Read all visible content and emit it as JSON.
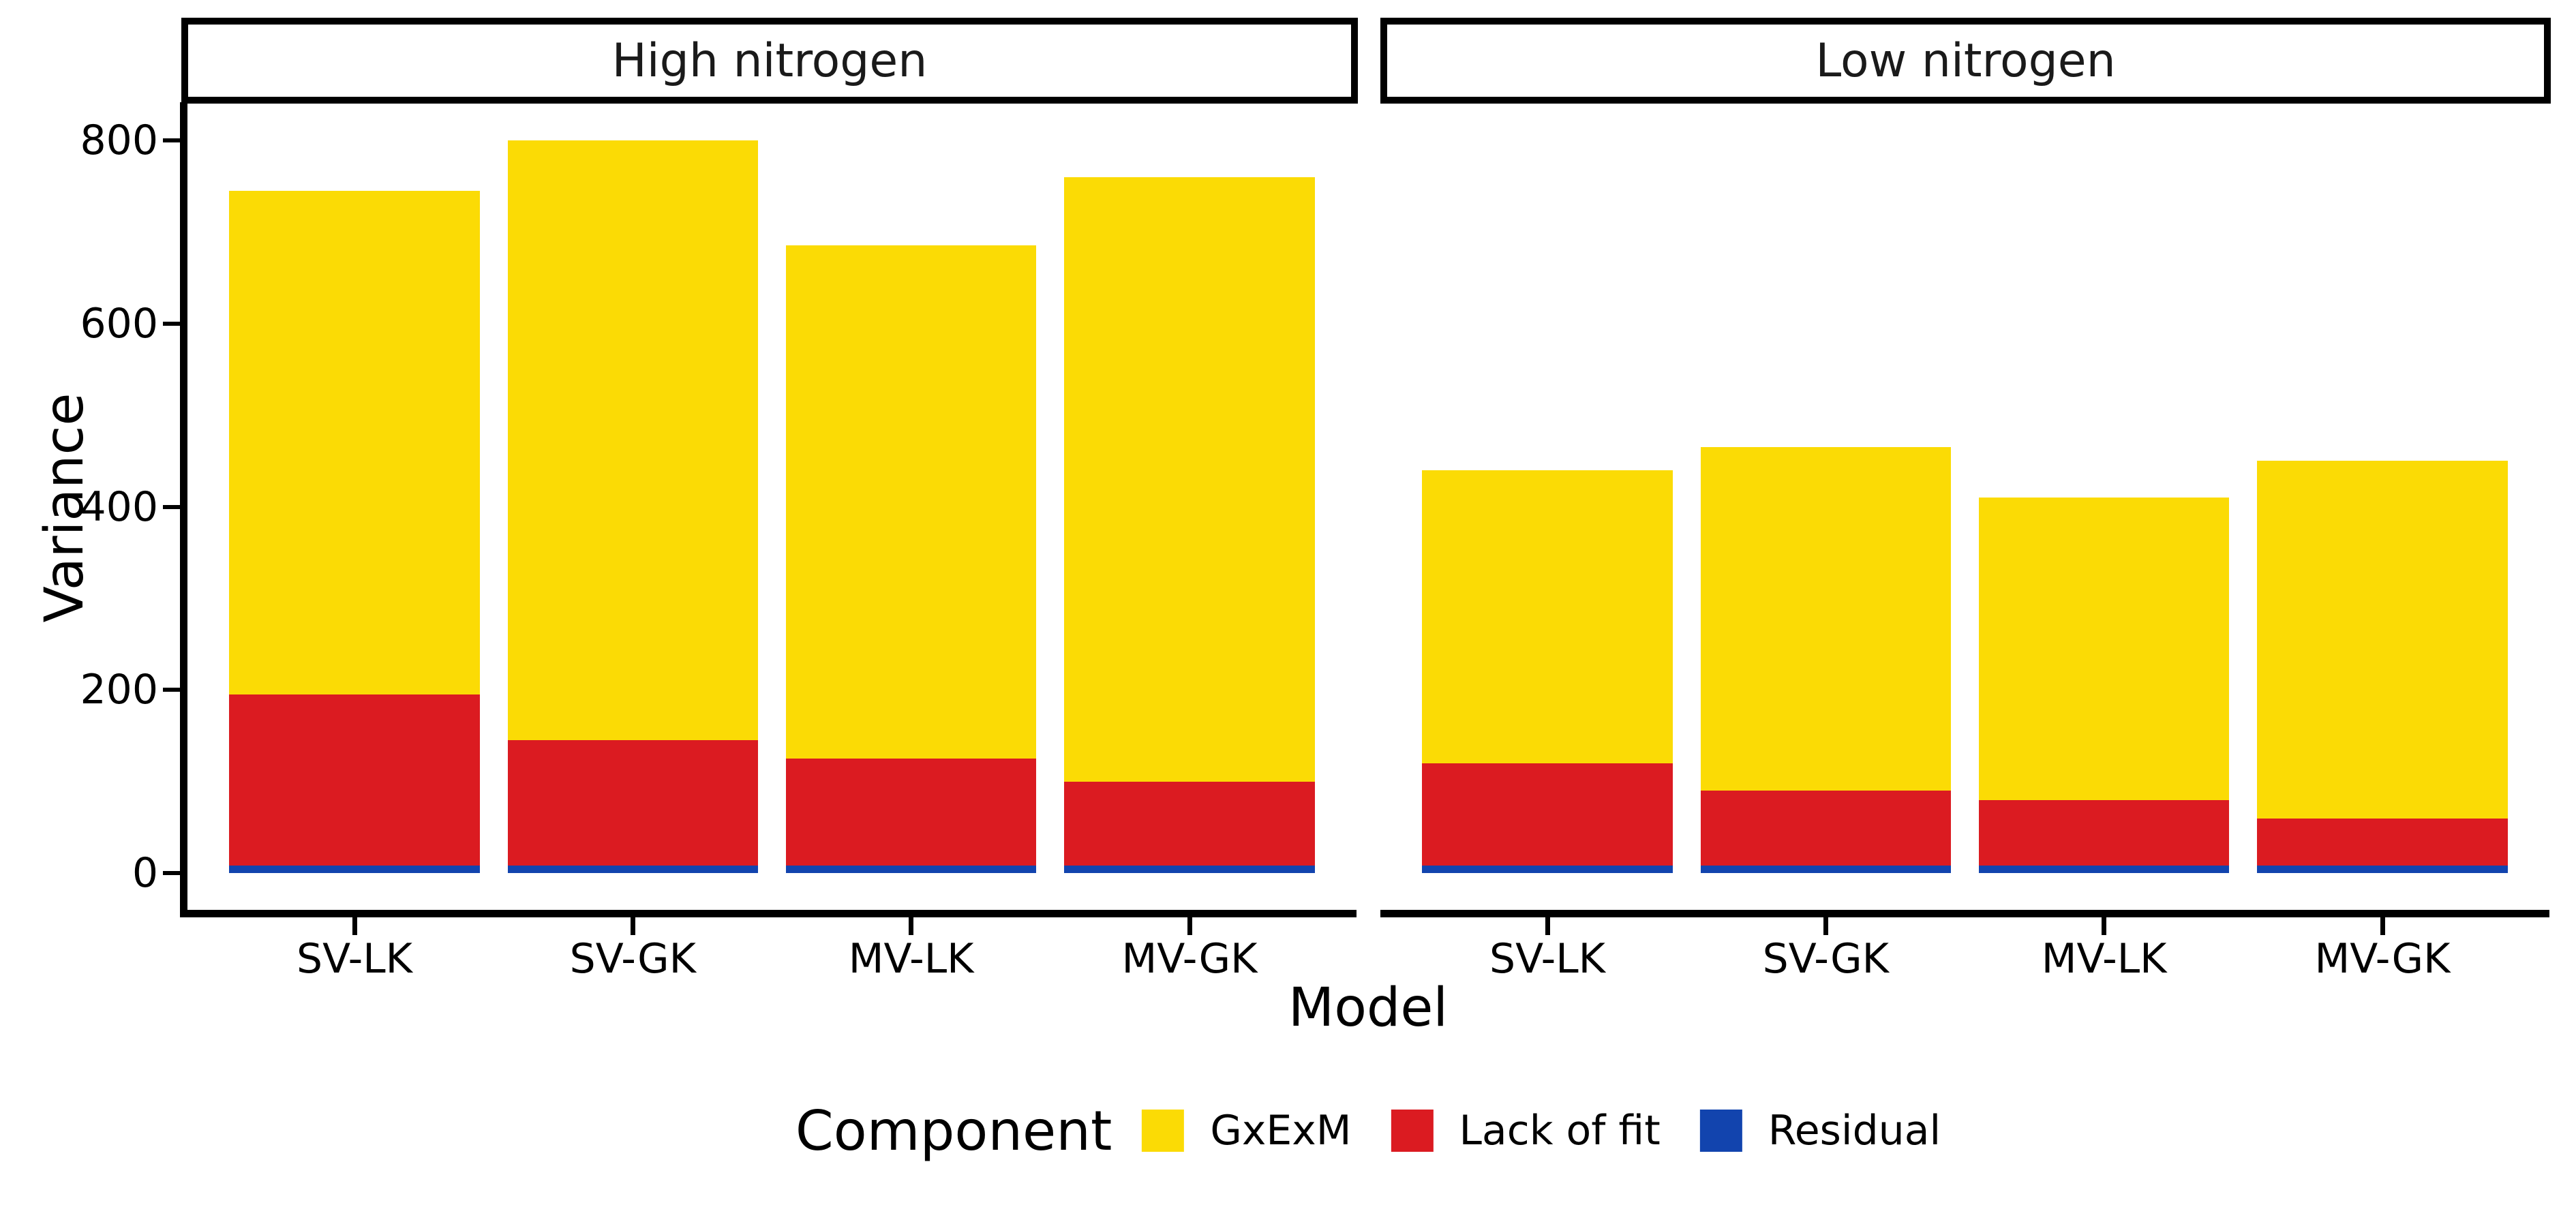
{
  "chart_data": {
    "type": "bar",
    "stacked": true,
    "title": "",
    "xlabel": "Model",
    "ylabel": "Variance",
    "ylim": [
      0,
      800
    ],
    "yticks": [
      0,
      200,
      400,
      600,
      800
    ],
    "grid": false,
    "categories": [
      "SV-LK",
      "SV-GK",
      "MV-LK",
      "MV-GK"
    ],
    "stack_order_bottom_to_top": [
      "Residual",
      "Lack of fit",
      "GxExM"
    ],
    "legend": {
      "title": "Component",
      "position": "bottom",
      "items": [
        {
          "label": "GxExM",
          "color": "#FBDB05"
        },
        {
          "label": "Lack of fit",
          "color": "#DB1B21"
        },
        {
          "label": "Residual",
          "color": "#1244AE"
        }
      ]
    },
    "facets": [
      {
        "label": "High nitrogen",
        "series": [
          {
            "name": "GxExM",
            "values": [
              550,
              655,
              560,
              660
            ]
          },
          {
            "name": "Lack of fit",
            "values": [
              187,
              137,
              117,
              92
            ]
          },
          {
            "name": "Residual",
            "values": [
              8,
              8,
              8,
              8
            ]
          }
        ],
        "totals": [
          745,
          800,
          685,
          760
        ]
      },
      {
        "label": "Low nitrogen",
        "series": [
          {
            "name": "GxExM",
            "values": [
              320,
              375,
              330,
              390
            ]
          },
          {
            "name": "Lack of fit",
            "values": [
              112,
              82,
              72,
              52
            ]
          },
          {
            "name": "Residual",
            "values": [
              8,
              8,
              8,
              8
            ]
          }
        ],
        "totals": [
          440,
          465,
          410,
          450
        ]
      }
    ]
  }
}
